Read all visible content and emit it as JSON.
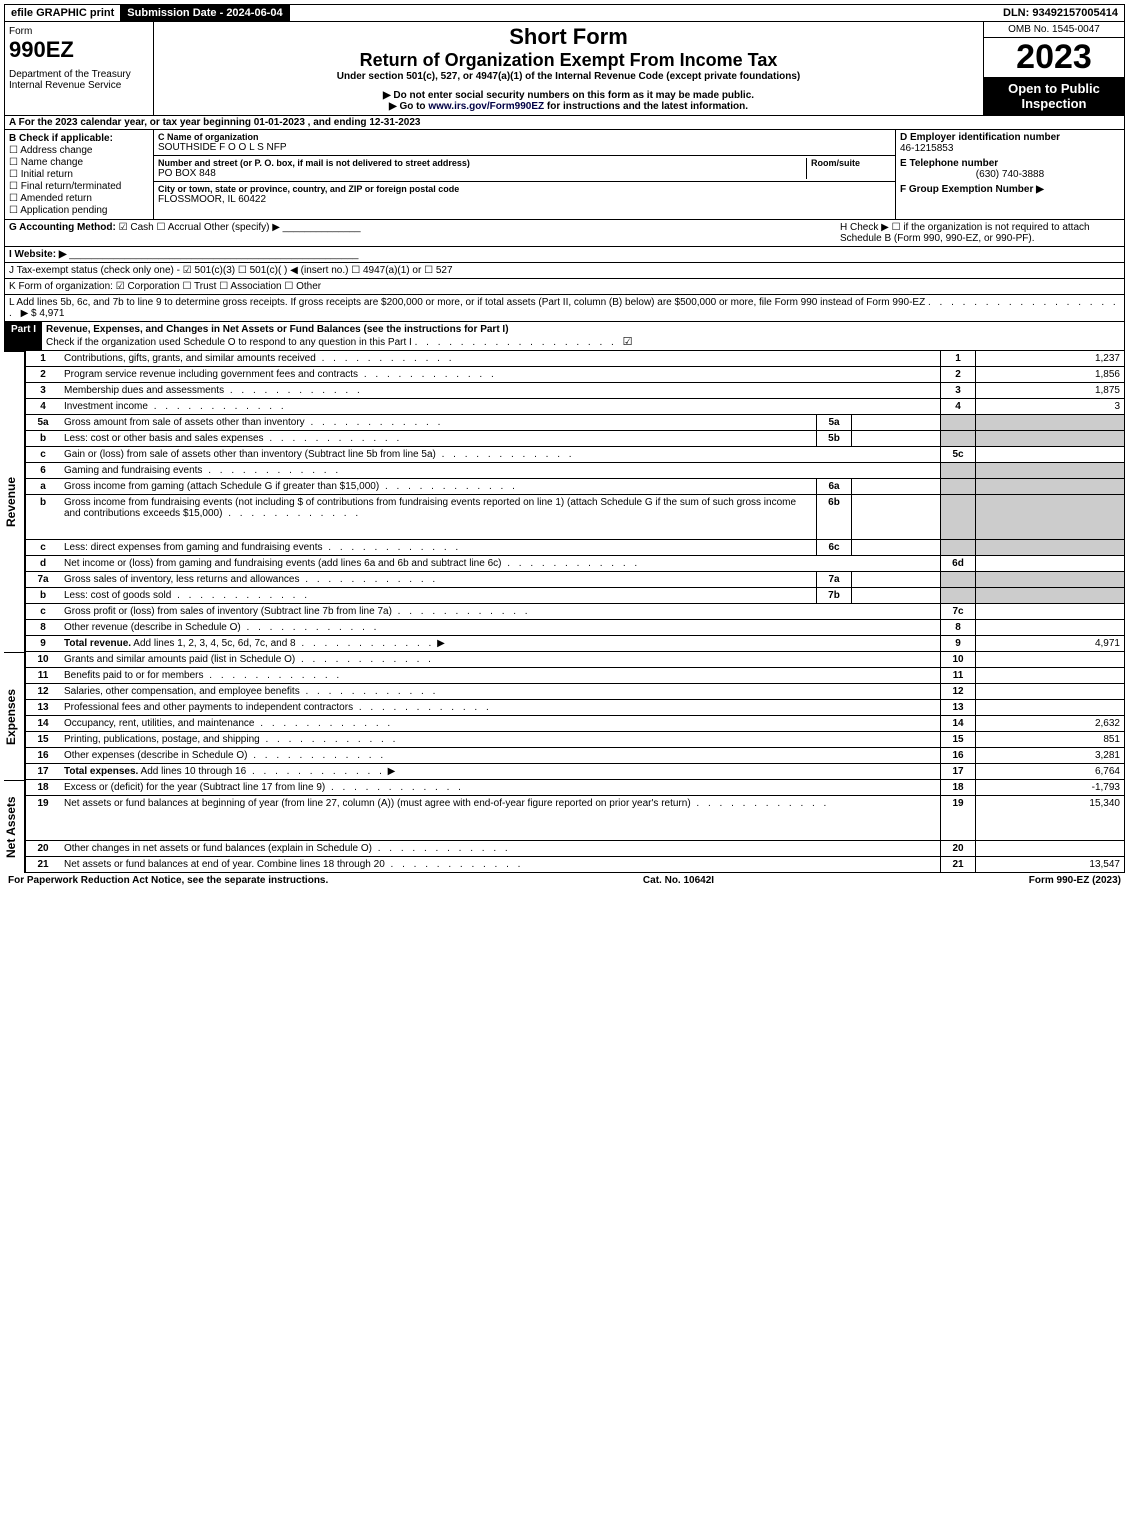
{
  "topbar": {
    "efile": "efile GRAPHIC print",
    "submission_label": "Submission Date - 2024-06-04",
    "dln": "DLN: 93492157005414"
  },
  "header": {
    "form_word": "Form",
    "form_no": "990EZ",
    "dept": "Department of the Treasury\nInternal Revenue Service",
    "title1": "Short Form",
    "title2": "Return of Organization Exempt From Income Tax",
    "sub1": "Under section 501(c), 527, or 4947(a)(1) of the Internal Revenue Code (except private foundations)",
    "sub2": "▶ Do not enter social security numbers on this form as it may be made public.",
    "sub3": "▶ Go to www.irs.gov/Form990EZ for instructions and the latest information.",
    "omb": "OMB No. 1545-0047",
    "year": "2023",
    "inspection": "Open to Public Inspection"
  },
  "row_a": "A  For the 2023 calendar year, or tax year beginning 01-01-2023 , and ending 12-31-2023",
  "section_b": {
    "title": "B  Check if applicable:",
    "items": [
      "Address change",
      "Name change",
      "Initial return",
      "Final return/terminated",
      "Amended return",
      "Application pending"
    ]
  },
  "section_c": {
    "name_label": "C Name of organization",
    "name": "SOUTHSIDE F O O L S NFP",
    "street_label": "Number and street (or P. O. box, if mail is not delivered to street address)",
    "room_label": "Room/suite",
    "street": "PO BOX 848",
    "city_label": "City or town, state or province, country, and ZIP or foreign postal code",
    "city": "FLOSSMOOR, IL  60422"
  },
  "section_d": {
    "ein_label": "D Employer identification number",
    "ein": "46-1215853",
    "phone_label": "E Telephone number",
    "phone": "(630) 740-3888",
    "group_label": "F Group Exemption Number  ▶"
  },
  "row_g": {
    "label": "G Accounting Method:",
    "cash": "Cash",
    "accrual": "Accrual",
    "other": "Other (specify) ▶"
  },
  "row_h": "H  Check ▶  ☐  if the organization is not required to attach Schedule B (Form 990, 990-EZ, or 990-PF).",
  "row_i": "I Website: ▶",
  "row_j": "J Tax-exempt status (check only one) - ☑ 501(c)(3)  ☐ 501(c)(  ) ◀ (insert no.)  ☐ 4947(a)(1) or  ☐ 527",
  "row_k": "K Form of organization:  ☑ Corporation  ☐ Trust  ☐ Association  ☐ Other",
  "row_l": {
    "text": "L Add lines 5b, 6c, and 7b to line 9 to determine gross receipts. If gross receipts are $200,000 or more, or if total assets (Part II, column (B) below) are $500,000 or more, file Form 990 instead of Form 990-EZ",
    "arrow": "▶ $",
    "value": "4,971"
  },
  "part1": {
    "label": "Part I",
    "title": "Revenue, Expenses, and Changes in Net Assets or Fund Balances (see the instructions for Part I)",
    "checknote": "Check if the organization used Schedule O to respond to any question in this Part I"
  },
  "sections": {
    "revenue": "Revenue",
    "expenses": "Expenses",
    "netassets": "Net Assets"
  },
  "lines": [
    {
      "n": "1",
      "desc": "Contributions, gifts, grants, and similar amounts received",
      "col": "1",
      "amt": "1,237"
    },
    {
      "n": "2",
      "desc": "Program service revenue including government fees and contracts",
      "col": "2",
      "amt": "1,856"
    },
    {
      "n": "3",
      "desc": "Membership dues and assessments",
      "col": "3",
      "amt": "1,875"
    },
    {
      "n": "4",
      "desc": "Investment income",
      "col": "4",
      "amt": "3"
    },
    {
      "n": "5a",
      "desc": "Gross amount from sale of assets other than inventory",
      "sub": "5a",
      "subamt": "",
      "shade": true
    },
    {
      "n": "b",
      "desc": "Less: cost or other basis and sales expenses",
      "sub": "5b",
      "subamt": "",
      "shade": true
    },
    {
      "n": "c",
      "desc": "Gain or (loss) from sale of assets other than inventory (Subtract line 5b from line 5a)",
      "col": "5c",
      "amt": ""
    },
    {
      "n": "6",
      "desc": "Gaming and fundraising events",
      "shade": true,
      "noamt": true
    },
    {
      "n": "a",
      "desc": "Gross income from gaming (attach Schedule G if greater than $15,000)",
      "sub": "6a",
      "subamt": "",
      "shade": true
    },
    {
      "n": "b",
      "desc": "Gross income from fundraising events (not including $                    of contributions from fundraising events reported on line 1) (attach Schedule G if the sum of such gross income and contributions exceeds $15,000)",
      "sub": "6b",
      "subamt": "",
      "shade": true,
      "tall": true
    },
    {
      "n": "c",
      "desc": "Less: direct expenses from gaming and fundraising events",
      "sub": "6c",
      "subamt": "",
      "shade": true
    },
    {
      "n": "d",
      "desc": "Net income or (loss) from gaming and fundraising events (add lines 6a and 6b and subtract line 6c)",
      "col": "6d",
      "amt": ""
    },
    {
      "n": "7a",
      "desc": "Gross sales of inventory, less returns and allowances",
      "sub": "7a",
      "subamt": "",
      "shade": true
    },
    {
      "n": "b",
      "desc": "Less: cost of goods sold",
      "sub": "7b",
      "subamt": "",
      "shade": true
    },
    {
      "n": "c",
      "desc": "Gross profit or (loss) from sales of inventory (Subtract line 7b from line 7a)",
      "col": "7c",
      "amt": ""
    },
    {
      "n": "8",
      "desc": "Other revenue (describe in Schedule O)",
      "col": "8",
      "amt": ""
    },
    {
      "n": "9",
      "desc": "Total revenue. Add lines 1, 2, 3, 4, 5c, 6d, 7c, and 8",
      "col": "9",
      "amt": "4,971",
      "bold": true,
      "arrow": true
    }
  ],
  "exp_lines": [
    {
      "n": "10",
      "desc": "Grants and similar amounts paid (list in Schedule O)",
      "col": "10",
      "amt": ""
    },
    {
      "n": "11",
      "desc": "Benefits paid to or for members",
      "col": "11",
      "amt": ""
    },
    {
      "n": "12",
      "desc": "Salaries, other compensation, and employee benefits",
      "col": "12",
      "amt": ""
    },
    {
      "n": "13",
      "desc": "Professional fees and other payments to independent contractors",
      "col": "13",
      "amt": ""
    },
    {
      "n": "14",
      "desc": "Occupancy, rent, utilities, and maintenance",
      "col": "14",
      "amt": "2,632"
    },
    {
      "n": "15",
      "desc": "Printing, publications, postage, and shipping",
      "col": "15",
      "amt": "851"
    },
    {
      "n": "16",
      "desc": "Other expenses (describe in Schedule O)",
      "col": "16",
      "amt": "3,281"
    },
    {
      "n": "17",
      "desc": "Total expenses. Add lines 10 through 16",
      "col": "17",
      "amt": "6,764",
      "bold": true,
      "arrow": true
    }
  ],
  "na_lines": [
    {
      "n": "18",
      "desc": "Excess or (deficit) for the year (Subtract line 17 from line 9)",
      "col": "18",
      "amt": "-1,793"
    },
    {
      "n": "19",
      "desc": "Net assets or fund balances at beginning of year (from line 27, column (A)) (must agree with end-of-year figure reported on prior year's return)",
      "col": "19",
      "amt": "15,340",
      "tall": true
    },
    {
      "n": "20",
      "desc": "Other changes in net assets or fund balances (explain in Schedule O)",
      "col": "20",
      "amt": ""
    },
    {
      "n": "21",
      "desc": "Net assets or fund balances at end of year. Combine lines 18 through 20",
      "col": "21",
      "amt": "13,547"
    }
  ],
  "footer": {
    "left": "For Paperwork Reduction Act Notice, see the separate instructions.",
    "mid": "Cat. No. 10642I",
    "right": "Form 990-EZ (2023)"
  }
}
